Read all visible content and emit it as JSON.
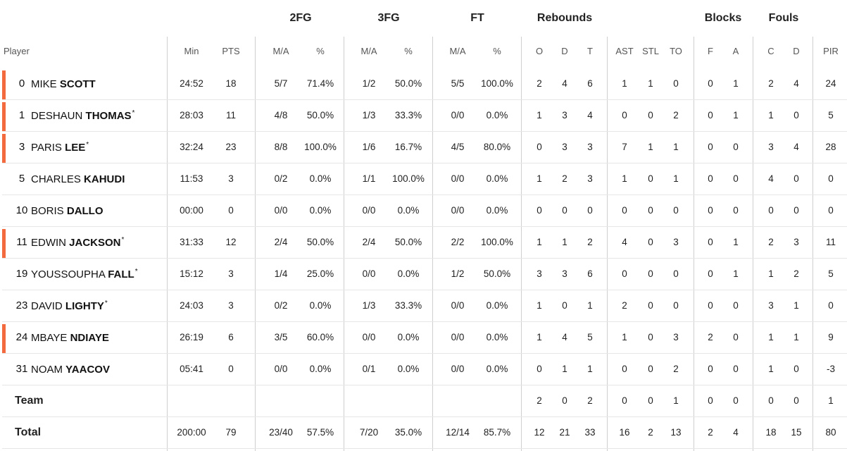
{
  "group_headers": [
    {
      "key": "2fg",
      "label": "2FG"
    },
    {
      "key": "3fg",
      "label": "3FG"
    },
    {
      "key": "ft",
      "label": "FT"
    },
    {
      "key": "reb",
      "label": "Rebounds"
    },
    {
      "key": "blk",
      "label": "Blocks"
    },
    {
      "key": "fouls",
      "label": "Fouls"
    }
  ],
  "column_headers": [
    "Player",
    "Min",
    "PTS",
    "M/A",
    "%",
    "M/A",
    "%",
    "M/A",
    "%",
    "O",
    "D",
    "T",
    "AST",
    "STL",
    "TO",
    "F",
    "A",
    "C",
    "D",
    "PIR"
  ],
  "players": [
    {
      "number": "0",
      "first": "MIKE",
      "last": "SCOTT",
      "star": "",
      "starter": true,
      "stats": [
        "24:52",
        "18",
        "5/7",
        "71.4%",
        "1/2",
        "50.0%",
        "5/5",
        "100.0%",
        "2",
        "4",
        "6",
        "1",
        "1",
        "0",
        "0",
        "1",
        "2",
        "4",
        "24"
      ]
    },
    {
      "number": "1",
      "first": "DESHAUN",
      "last": "THOMAS",
      "star": "*",
      "starter": true,
      "stats": [
        "28:03",
        "11",
        "4/8",
        "50.0%",
        "1/3",
        "33.3%",
        "0/0",
        "0.0%",
        "1",
        "3",
        "4",
        "0",
        "0",
        "2",
        "0",
        "1",
        "1",
        "0",
        "5"
      ]
    },
    {
      "number": "3",
      "first": "PARIS",
      "last": "LEE",
      "star": "*",
      "starter": true,
      "stats": [
        "32:24",
        "23",
        "8/8",
        "100.0%",
        "1/6",
        "16.7%",
        "4/5",
        "80.0%",
        "0",
        "3",
        "3",
        "7",
        "1",
        "1",
        "0",
        "0",
        "3",
        "4",
        "28"
      ]
    },
    {
      "number": "5",
      "first": "CHARLES",
      "last": "KAHUDI",
      "star": "",
      "starter": false,
      "stats": [
        "11:53",
        "3",
        "0/2",
        "0.0%",
        "1/1",
        "100.0%",
        "0/0",
        "0.0%",
        "1",
        "2",
        "3",
        "1",
        "0",
        "1",
        "0",
        "0",
        "4",
        "0",
        "0"
      ]
    },
    {
      "number": "10",
      "first": "BORIS",
      "last": "DALLO",
      "star": "",
      "starter": false,
      "stats": [
        "00:00",
        "0",
        "0/0",
        "0.0%",
        "0/0",
        "0.0%",
        "0/0",
        "0.0%",
        "0",
        "0",
        "0",
        "0",
        "0",
        "0",
        "0",
        "0",
        "0",
        "0",
        "0"
      ]
    },
    {
      "number": "11",
      "first": "EDWIN",
      "last": "JACKSON",
      "star": "*",
      "starter": true,
      "stats": [
        "31:33",
        "12",
        "2/4",
        "50.0%",
        "2/4",
        "50.0%",
        "2/2",
        "100.0%",
        "1",
        "1",
        "2",
        "4",
        "0",
        "3",
        "0",
        "1",
        "2",
        "3",
        "11"
      ]
    },
    {
      "number": "19",
      "first": "YOUSSOUPHA",
      "last": "FALL",
      "star": "*",
      "starter": false,
      "stats": [
        "15:12",
        "3",
        "1/4",
        "25.0%",
        "0/0",
        "0.0%",
        "1/2",
        "50.0%",
        "3",
        "3",
        "6",
        "0",
        "0",
        "0",
        "0",
        "1",
        "1",
        "2",
        "5"
      ]
    },
    {
      "number": "23",
      "first": "DAVID",
      "last": "LIGHTY",
      "star": "*",
      "starter": false,
      "stats": [
        "24:03",
        "3",
        "0/2",
        "0.0%",
        "1/3",
        "33.3%",
        "0/0",
        "0.0%",
        "1",
        "0",
        "1",
        "2",
        "0",
        "0",
        "0",
        "0",
        "3",
        "1",
        "0"
      ]
    },
    {
      "number": "24",
      "first": "MBAYE",
      "last": "NDIAYE",
      "star": "",
      "starter": true,
      "stats": [
        "26:19",
        "6",
        "3/5",
        "60.0%",
        "0/0",
        "0.0%",
        "0/0",
        "0.0%",
        "1",
        "4",
        "5",
        "1",
        "0",
        "3",
        "2",
        "0",
        "1",
        "1",
        "9"
      ]
    },
    {
      "number": "31",
      "first": "NOAM",
      "last": "YAACOV",
      "star": "",
      "starter": false,
      "stats": [
        "05:41",
        "0",
        "0/0",
        "0.0%",
        "0/1",
        "0.0%",
        "0/0",
        "0.0%",
        "0",
        "1",
        "1",
        "0",
        "0",
        "2",
        "0",
        "0",
        "1",
        "0",
        "-3"
      ]
    }
  ],
  "team_row": {
    "label": "Team",
    "stats": [
      "",
      "",
      "",
      "",
      "",
      "",
      "",
      "",
      "2",
      "0",
      "2",
      "0",
      "0",
      "1",
      "0",
      "0",
      "0",
      "0",
      "1"
    ]
  },
  "total_row": {
    "label": "Total",
    "stats": [
      "200:00",
      "79",
      "23/40",
      "57.5%",
      "7/20",
      "35.0%",
      "12/14",
      "85.7%",
      "12",
      "21",
      "33",
      "16",
      "2",
      "13",
      "2",
      "4",
      "18",
      "15",
      "80"
    ]
  },
  "colors": {
    "starter_bar": "#f26a3d",
    "divider": "#cfcfcf",
    "row_line": "#e6e6e6"
  }
}
